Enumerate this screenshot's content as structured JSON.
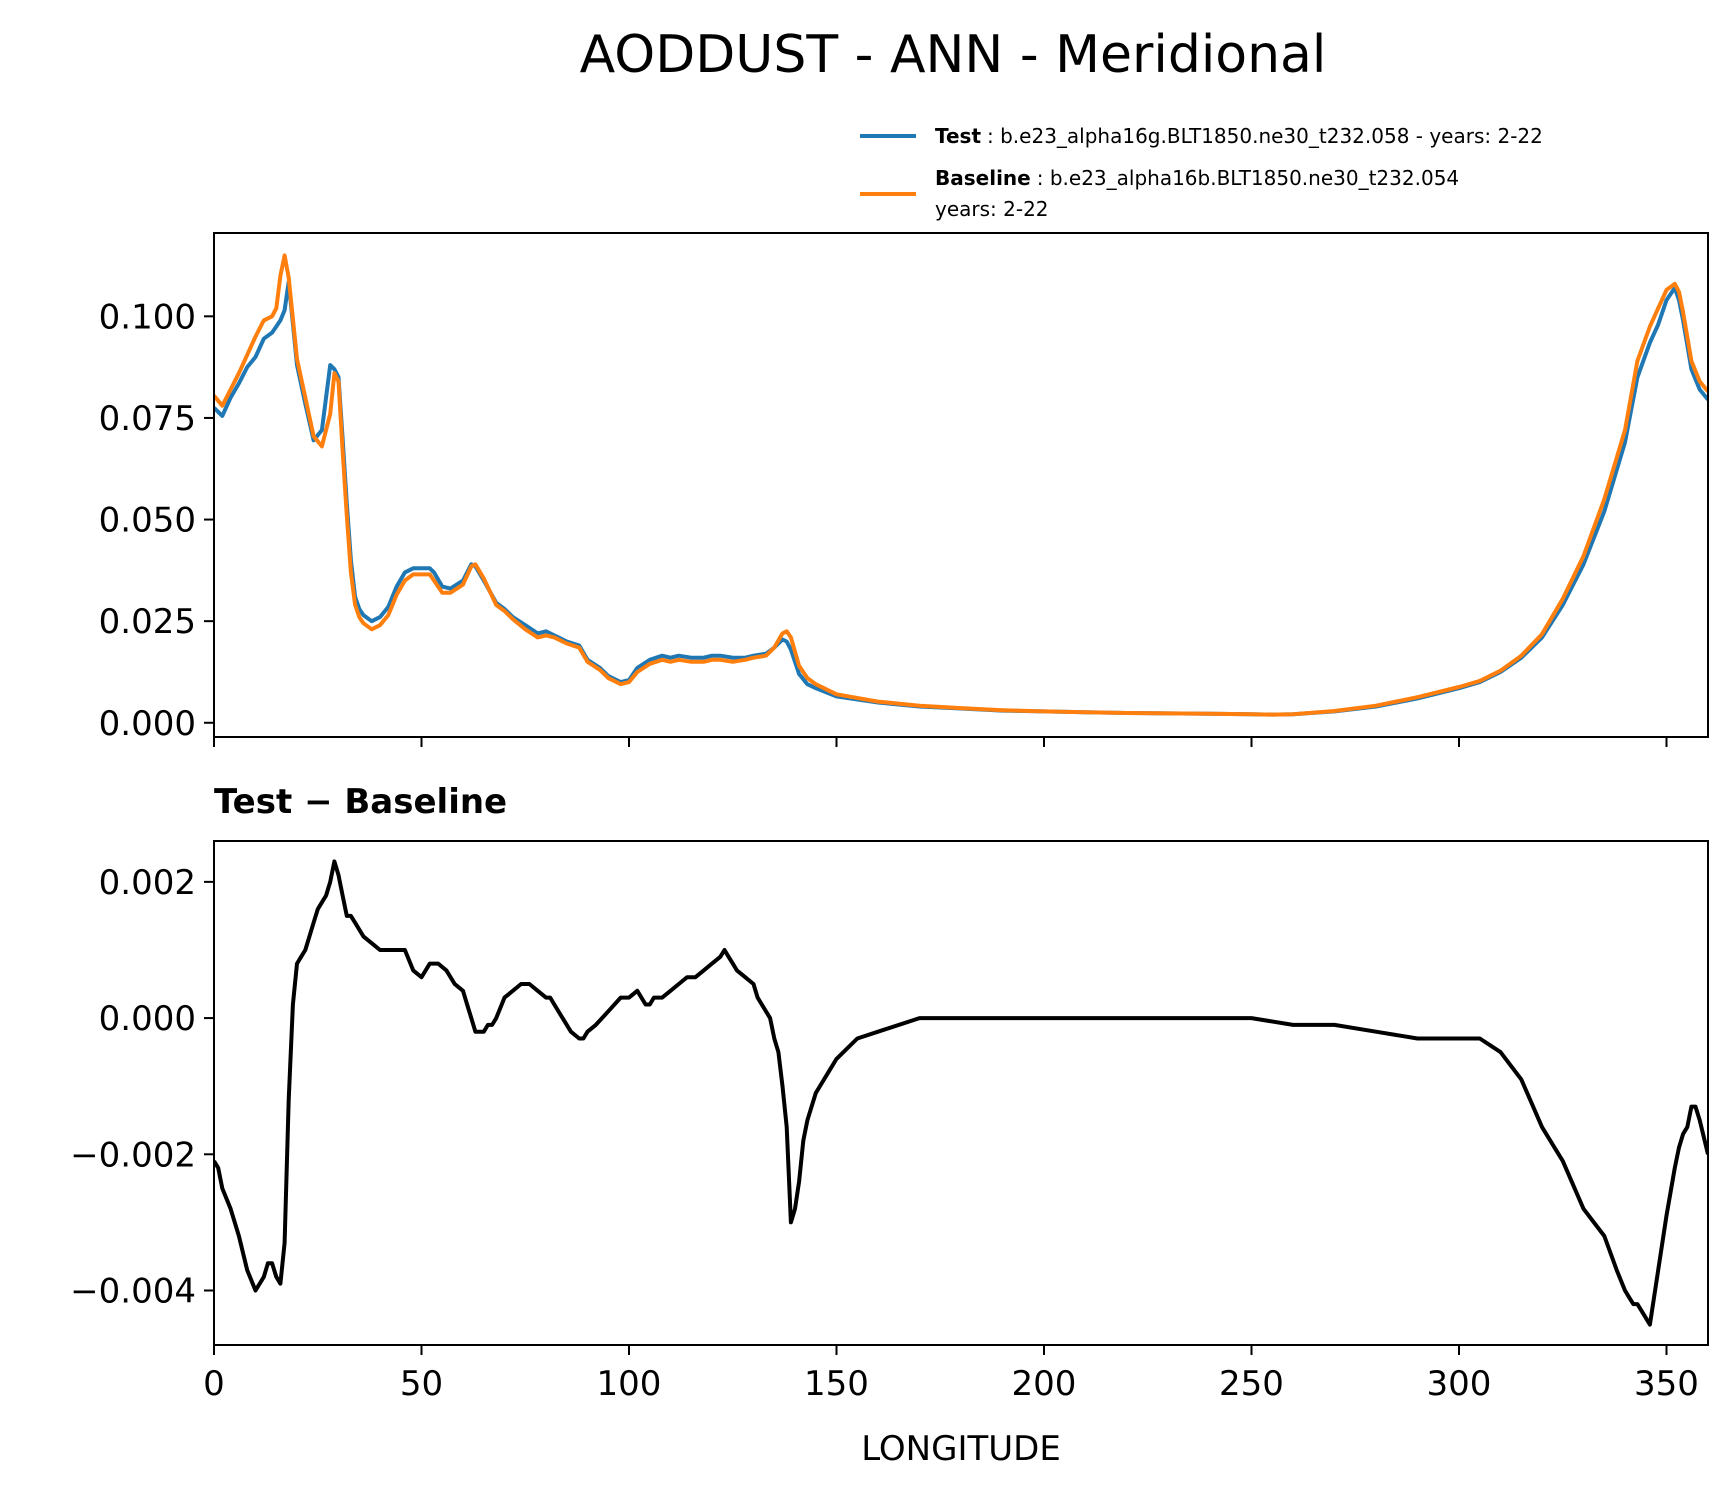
{
  "chart_data": {
    "type": "line",
    "title": "AODDUST - ANN - Meridional",
    "xlabel": "LONGITUDE",
    "xlim": [
      0,
      360
    ],
    "xticks": [
      0,
      50,
      100,
      150,
      200,
      250,
      300,
      350
    ],
    "legend": {
      "placement": "top-right",
      "entries": [
        {
          "bold": "Test",
          "text": ": b.e23_alpha16g.BLT1850.ne30_t232.058 - years: 2-22",
          "text2": "",
          "color": "#1f77b4"
        },
        {
          "bold": "Baseline",
          "text": ": b.e23_alpha16b.BLT1850.ne30_t232.054",
          "text2": "years: 2-22",
          "color": "#ff7f0e"
        }
      ]
    },
    "panels": [
      {
        "name": "top",
        "title": "",
        "ylim": [
          -0.0035,
          0.1205
        ],
        "yticks": [
          0.0,
          0.025,
          0.05,
          0.075,
          0.1
        ],
        "yticklabels": [
          "0.000",
          "0.025",
          "0.050",
          "0.075",
          "0.100"
        ],
        "series": [
          {
            "name": "Test",
            "color": "#1f77b4",
            "x": [
              0,
              2,
              4,
              6,
              8,
              10,
              12,
              14,
              15,
              16,
              17,
              18,
              20,
              22,
              24,
              26,
              28,
              29,
              30,
              31,
              32,
              33,
              34,
              35,
              36,
              38,
              40,
              42,
              44,
              46,
              48,
              50,
              52,
              53,
              55,
              57,
              60,
              62,
              63,
              65,
              68,
              70,
              72,
              75,
              78,
              80,
              82,
              85,
              88,
              90,
              93,
              95,
              97,
              98,
              100,
              102,
              105,
              108,
              110,
              112,
              115,
              118,
              120,
              122,
              125,
              128,
              130,
              133,
              135,
              137,
              138,
              139,
              141,
              143,
              145,
              150,
              160,
              170,
              180,
              190,
              200,
              210,
              220,
              230,
              240,
              250,
              255,
              260,
              270,
              280,
              290,
              300,
              305,
              310,
              315,
              320,
              325,
              330,
              335,
              340,
              343,
              346,
              348,
              350,
              352,
              353,
              354,
              356,
              358,
              360
            ],
            "values": [
              0.0775,
              0.0755,
              0.08,
              0.0835,
              0.0875,
              0.09,
              0.0945,
              0.096,
              0.0975,
              0.099,
              0.1015,
              0.1085,
              0.088,
              0.0785,
              0.0695,
              0.072,
              0.088,
              0.087,
              0.085,
              0.07,
              0.054,
              0.04,
              0.031,
              0.028,
              0.0265,
              0.025,
              0.026,
              0.0285,
              0.0335,
              0.037,
              0.038,
              0.038,
              0.038,
              0.037,
              0.0335,
              0.033,
              0.035,
              0.039,
              0.0385,
              0.035,
              0.0295,
              0.028,
              0.026,
              0.024,
              0.022,
              0.0225,
              0.0215,
              0.02,
              0.019,
              0.0155,
              0.0135,
              0.0115,
              0.0105,
              0.01,
              0.0105,
              0.0135,
              0.0155,
              0.0165,
              0.016,
              0.0165,
              0.016,
              0.016,
              0.0165,
              0.0165,
              0.016,
              0.016,
              0.0165,
              0.017,
              0.0185,
              0.0205,
              0.02,
              0.018,
              0.012,
              0.0095,
              0.0085,
              0.0065,
              0.005,
              0.004,
              0.0035,
              0.003,
              0.0028,
              0.0026,
              0.0024,
              0.0023,
              0.0022,
              0.0021,
              0.002,
              0.0021,
              0.0028,
              0.004,
              0.006,
              0.0085,
              0.01,
              0.0125,
              0.016,
              0.021,
              0.029,
              0.039,
              0.052,
              0.069,
              0.085,
              0.0935,
              0.098,
              0.104,
              0.107,
              0.104,
              0.099,
              0.087,
              0.082,
              0.0795
            ]
          },
          {
            "name": "Baseline",
            "color": "#ff7f0e",
            "x": [
              0,
              2,
              4,
              6,
              8,
              10,
              12,
              14,
              15,
              16,
              17,
              18,
              20,
              22,
              24,
              26,
              28,
              29,
              30,
              31,
              32,
              33,
              34,
              35,
              36,
              38,
              40,
              42,
              44,
              46,
              48,
              50,
              52,
              53,
              55,
              57,
              60,
              62,
              63,
              65,
              68,
              70,
              72,
              75,
              78,
              80,
              82,
              85,
              88,
              90,
              93,
              95,
              97,
              98,
              100,
              102,
              105,
              108,
              110,
              112,
              115,
              118,
              120,
              122,
              125,
              128,
              130,
              133,
              135,
              137,
              138,
              139,
              141,
              143,
              145,
              150,
              160,
              170,
              180,
              190,
              200,
              210,
              220,
              230,
              240,
              250,
              255,
              260,
              270,
              280,
              290,
              300,
              305,
              310,
              315,
              320,
              325,
              330,
              335,
              340,
              343,
              346,
              348,
              350,
              352,
              353,
              354,
              356,
              358,
              360
            ],
            "values": [
              0.0805,
              0.078,
              0.082,
              0.086,
              0.0905,
              0.095,
              0.099,
              0.1,
              0.102,
              0.11,
              0.115,
              0.1095,
              0.0895,
              0.08,
              0.0705,
              0.068,
              0.076,
              0.086,
              0.084,
              0.067,
              0.051,
              0.037,
              0.029,
              0.026,
              0.0245,
              0.023,
              0.024,
              0.0265,
              0.0315,
              0.035,
              0.0365,
              0.0365,
              0.0365,
              0.035,
              0.032,
              0.032,
              0.034,
              0.0385,
              0.039,
              0.0355,
              0.029,
              0.0275,
              0.0255,
              0.023,
              0.021,
              0.0215,
              0.021,
              0.0195,
              0.0185,
              0.015,
              0.013,
              0.011,
              0.01,
              0.0095,
              0.01,
              0.0125,
              0.0145,
              0.0155,
              0.015,
              0.0155,
              0.015,
              0.015,
              0.0155,
              0.0155,
              0.015,
              0.0155,
              0.016,
              0.0165,
              0.0185,
              0.022,
              0.0225,
              0.021,
              0.014,
              0.011,
              0.0095,
              0.007,
              0.0052,
              0.0042,
              0.0036,
              0.0031,
              0.0028,
              0.0026,
              0.0024,
              0.0023,
              0.0022,
              0.0021,
              0.002,
              0.0021,
              0.0029,
              0.0042,
              0.0063,
              0.0088,
              0.0103,
              0.0128,
              0.0165,
              0.0218,
              0.0305,
              0.041,
              0.055,
              0.072,
              0.089,
              0.0975,
              0.102,
              0.1065,
              0.108,
              0.106,
              0.101,
              0.089,
              0.084,
              0.0815
            ]
          }
        ]
      },
      {
        "name": "bottom",
        "title": "Test − Baseline",
        "ylim": [
          -0.0048,
          0.0026
        ],
        "yticks": [
          -0.004,
          -0.002,
          0.0,
          0.002
        ],
        "yticklabels": [
          "−0.004",
          "−0.002",
          "0.000",
          "0.002"
        ],
        "series": [
          {
            "name": "",
            "color": "#000000",
            "x": [
              0,
              1,
              2,
              4,
              6,
              8,
              10,
              12,
              13,
              14,
              15,
              16,
              17,
              18,
              19,
              20,
              21,
              22,
              24,
              25,
              26,
              27,
              28,
              29,
              30,
              31,
              32,
              33,
              34,
              36,
              38,
              40,
              42,
              44,
              45,
              46,
              48,
              50,
              52,
              54,
              56,
              58,
              60,
              61,
              62,
              63,
              64,
              65,
              66,
              67,
              68,
              70,
              72,
              74,
              76,
              78,
              80,
              81,
              82,
              84,
              86,
              88,
              89,
              90,
              92,
              95,
              98,
              100,
              102,
              104,
              105,
              106,
              108,
              110,
              112,
              114,
              116,
              118,
              120,
              122,
              123,
              124,
              125,
              126,
              128,
              130,
              131,
              132,
              134,
              135,
              136,
              137,
              138,
              139,
              140,
              141,
              142,
              143,
              145,
              148,
              150,
              155,
              160,
              170,
              180,
              190,
              200,
              210,
              220,
              230,
              240,
              250,
              260,
              270,
              280,
              290,
              300,
              305,
              310,
              315,
              320,
              325,
              330,
              335,
              338,
              340,
              341,
              342,
              343,
              345,
              346,
              348,
              350,
              352,
              353,
              354,
              355,
              356,
              357,
              358,
              360
            ],
            "values": [
              -0.0021,
              -0.0022,
              -0.0025,
              -0.0028,
              -0.0032,
              -0.0037,
              -0.004,
              -0.0038,
              -0.0036,
              -0.0036,
              -0.0038,
              -0.0039,
              -0.0033,
              -0.0012,
              0.0002,
              0.0008,
              0.0009,
              0.001,
              0.0014,
              0.0016,
              0.0017,
              0.0018,
              0.002,
              0.0023,
              0.0021,
              0.0018,
              0.0015,
              0.0015,
              0.0014,
              0.0012,
              0.0011,
              0.001,
              0.001,
              0.001,
              0.001,
              0.001,
              0.0007,
              0.0006,
              0.0008,
              0.0008,
              0.0007,
              0.0005,
              0.0004,
              0.0002,
              0.0,
              -0.0002,
              -0.0002,
              -0.0002,
              -0.0001,
              -0.0001,
              0.0,
              0.0003,
              0.0004,
              0.0005,
              0.0005,
              0.0004,
              0.0003,
              0.0003,
              0.0002,
              0.0,
              -0.0002,
              -0.0003,
              -0.0003,
              -0.0002,
              -0.0001,
              0.0001,
              0.0003,
              0.0003,
              0.0004,
              0.0002,
              0.0002,
              0.0003,
              0.0003,
              0.0004,
              0.0005,
              0.0006,
              0.0006,
              0.0007,
              0.0008,
              0.0009,
              0.001,
              0.0009,
              0.0008,
              0.0007,
              0.0006,
              0.0005,
              0.0003,
              0.0002,
              0.0,
              -0.0003,
              -0.0005,
              -0.001,
              -0.0016,
              -0.003,
              -0.0028,
              -0.0024,
              -0.0018,
              -0.0015,
              -0.0011,
              -0.0008,
              -0.0006,
              -0.0003,
              -0.0002,
              0.0,
              0.0,
              0.0,
              0.0,
              0.0,
              0.0,
              0.0,
              0.0,
              0.0,
              -0.0001,
              -0.0001,
              -0.0002,
              -0.0003,
              -0.0003,
              -0.0003,
              -0.0005,
              -0.0009,
              -0.0016,
              -0.0021,
              -0.0028,
              -0.0032,
              -0.0037,
              -0.004,
              -0.0041,
              -0.0042,
              -0.0042,
              -0.0044,
              -0.0045,
              -0.0037,
              -0.0029,
              -0.0022,
              -0.0019,
              -0.0017,
              -0.0016,
              -0.0013,
              -0.0013,
              -0.0015,
              -0.002
            ]
          }
        ]
      }
    ]
  }
}
